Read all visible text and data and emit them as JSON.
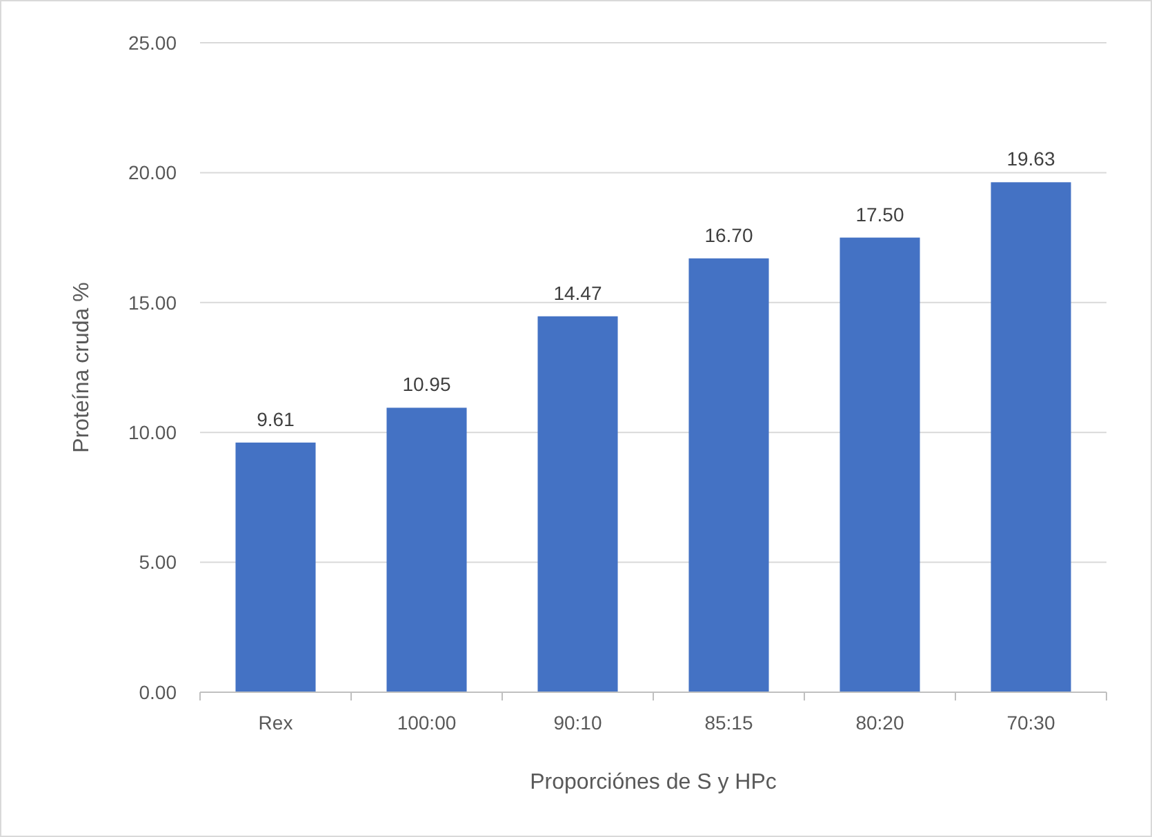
{
  "chart_data": {
    "type": "bar",
    "xlabel": "Proporciónes de S y HPc",
    "ylabel": "Proteína cruda %",
    "categories": [
      "Rex",
      "100:00",
      "90:10",
      "85:15",
      "80:20",
      "70:30"
    ],
    "values": [
      9.61,
      10.95,
      14.47,
      16.7,
      17.5,
      19.63
    ],
    "value_labels": [
      "9.61",
      "10.95",
      "14.47",
      "16.70",
      "17.50",
      "19.63"
    ],
    "color": "#4472c4",
    "ylim": [
      0,
      25
    ],
    "yticks": [
      {
        "value": 0,
        "label": "0.00"
      },
      {
        "value": 5,
        "label": "5.00"
      },
      {
        "value": 10,
        "label": "10.00"
      },
      {
        "value": 15,
        "label": "15.00"
      },
      {
        "value": 20,
        "label": "20.00"
      },
      {
        "value": 25,
        "label": "25.00"
      }
    ],
    "grid": "y"
  }
}
